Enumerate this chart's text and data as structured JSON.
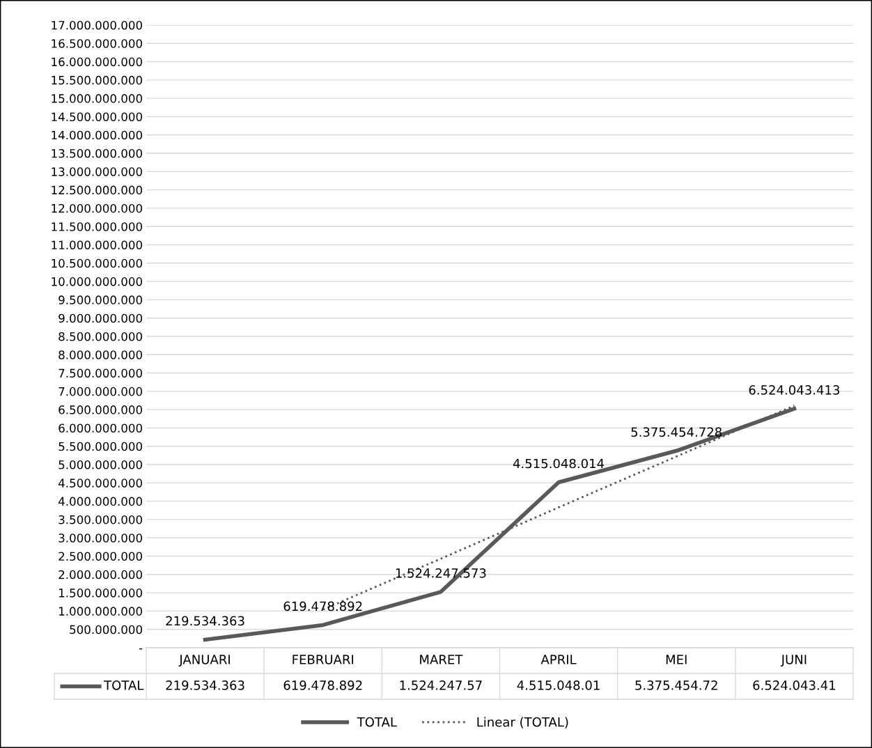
{
  "chart_data": {
    "type": "line",
    "categories": [
      "JANUARI",
      "FEBRUARI",
      "MARET",
      "APRIL",
      "MEI",
      "JUNI"
    ],
    "series": [
      {
        "name": "TOTAL",
        "color": "#595959",
        "line_style": "solid",
        "values": [
          219534363,
          619478892,
          1524247573,
          4515048014,
          5375454728,
          6524043413
        ],
        "value_labels": [
          "219.534.363",
          "619.478.892",
          "1.524.247.573",
          "4.515.048.014",
          "5.375.454.728",
          "6.524.043.413"
        ]
      },
      {
        "name": "Linear (TOTAL)",
        "color": "#595959",
        "line_style": "dotted",
        "values": [
          null,
          1040000000,
          2430000000,
          3830000000,
          5220000000,
          6610000000
        ]
      }
    ],
    "ylim": [
      0,
      17000000000
    ],
    "yticks": [
      {
        "value": 0,
        "label": "-"
      },
      {
        "value": 500000000,
        "label": "500.000.000"
      },
      {
        "value": 1000000000,
        "label": "1.000.000.000"
      },
      {
        "value": 1500000000,
        "label": "1.500.000.000"
      },
      {
        "value": 2000000000,
        "label": "2.000.000.000"
      },
      {
        "value": 2500000000,
        "label": "2.500.000.000"
      },
      {
        "value": 3000000000,
        "label": "3.000.000.000"
      },
      {
        "value": 3500000000,
        "label": "3.500.000.000"
      },
      {
        "value": 4000000000,
        "label": "4.000.000.000"
      },
      {
        "value": 4500000000,
        "label": "4.500.000.000"
      },
      {
        "value": 5000000000,
        "label": "5.000.000.000"
      },
      {
        "value": 5500000000,
        "label": "5.500.000.000"
      },
      {
        "value": 6000000000,
        "label": "6.000.000.000"
      },
      {
        "value": 6500000000,
        "label": "6.500.000.000"
      },
      {
        "value": 7000000000,
        "label": "7.000.000.000"
      },
      {
        "value": 7500000000,
        "label": "7.500.000.000"
      },
      {
        "value": 8000000000,
        "label": "8.000.000.000"
      },
      {
        "value": 8500000000,
        "label": "8.500.000.000"
      },
      {
        "value": 9000000000,
        "label": "9.000.000.000"
      },
      {
        "value": 9500000000,
        "label": "9.500.000.000"
      },
      {
        "value": 10000000000,
        "label": "10.000.000.000"
      },
      {
        "value": 10500000000,
        "label": "10.500.000.000"
      },
      {
        "value": 11000000000,
        "label": "11.000.000.000"
      },
      {
        "value": 11500000000,
        "label": "11.500.000.000"
      },
      {
        "value": 12000000000,
        "label": "12.000.000.000"
      },
      {
        "value": 12500000000,
        "label": "12.500.000.000"
      },
      {
        "value": 13000000000,
        "label": "13.000.000.000"
      },
      {
        "value": 13500000000,
        "label": "13.500.000.000"
      },
      {
        "value": 14000000000,
        "label": "14.000.000.000"
      },
      {
        "value": 14500000000,
        "label": "14.500.000.000"
      },
      {
        "value": 15000000000,
        "label": "15.000.000.000"
      },
      {
        "value": 15500000000,
        "label": "15.500.000.000"
      },
      {
        "value": 16000000000,
        "label": "16.000.000.000"
      },
      {
        "value": 16500000000,
        "label": "16.500.000.000"
      },
      {
        "value": 17000000000,
        "label": "17.000.000.000"
      }
    ],
    "grid": "y",
    "legend": "bottom",
    "annotations": [
      "219.534.363",
      "619.478.892",
      "1.524.247.57",
      "4.515.048.01",
      "5.375.454.72",
      "6.524.043.41"
    ]
  }
}
